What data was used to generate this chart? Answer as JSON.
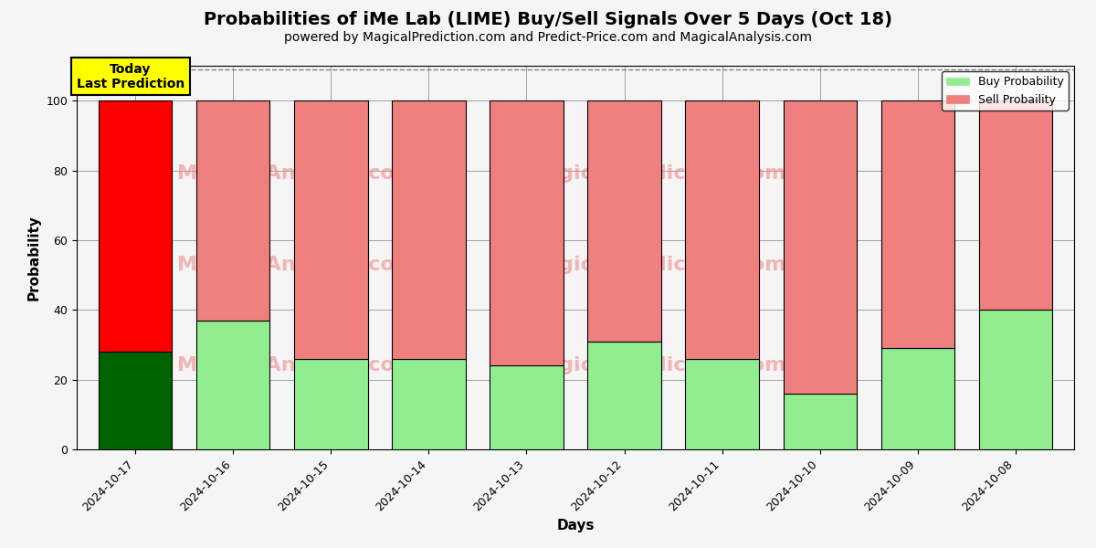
{
  "title": "Probabilities of iMe Lab (LIME) Buy/Sell Signals Over 5 Days (Oct 18)",
  "subtitle": "powered by MagicalPrediction.com and Predict-Price.com and MagicalAnalysis.com",
  "xlabel": "Days",
  "ylabel": "Probability",
  "dates": [
    "2024-10-17",
    "2024-10-16",
    "2024-10-15",
    "2024-10-14",
    "2024-10-13",
    "2024-10-12",
    "2024-10-11",
    "2024-10-10",
    "2024-10-09",
    "2024-10-08"
  ],
  "buy_values": [
    28,
    37,
    26,
    26,
    24,
    31,
    26,
    16,
    29,
    40
  ],
  "sell_values": [
    72,
    63,
    74,
    74,
    76,
    69,
    74,
    84,
    71,
    60
  ],
  "buy_color_today": "#006400",
  "sell_color_today": "#ff0000",
  "buy_color_normal": "#90ee90",
  "sell_color_normal": "#f08080",
  "bar_edge_color": "#000000",
  "ylim": [
    0,
    110
  ],
  "yticks": [
    0,
    20,
    40,
    60,
    80,
    100
  ],
  "dashed_line_y": 109,
  "watermark_color": "#f08080",
  "today_label_text": "Today\nLast Prediction",
  "today_label_bg": "#ffff00",
  "legend_buy": "Buy Probability",
  "legend_sell": "Sell Probaility",
  "title_fontsize": 14,
  "subtitle_fontsize": 10,
  "axis_fontsize": 11,
  "tick_fontsize": 9,
  "bg_color": "#f5f5f5"
}
